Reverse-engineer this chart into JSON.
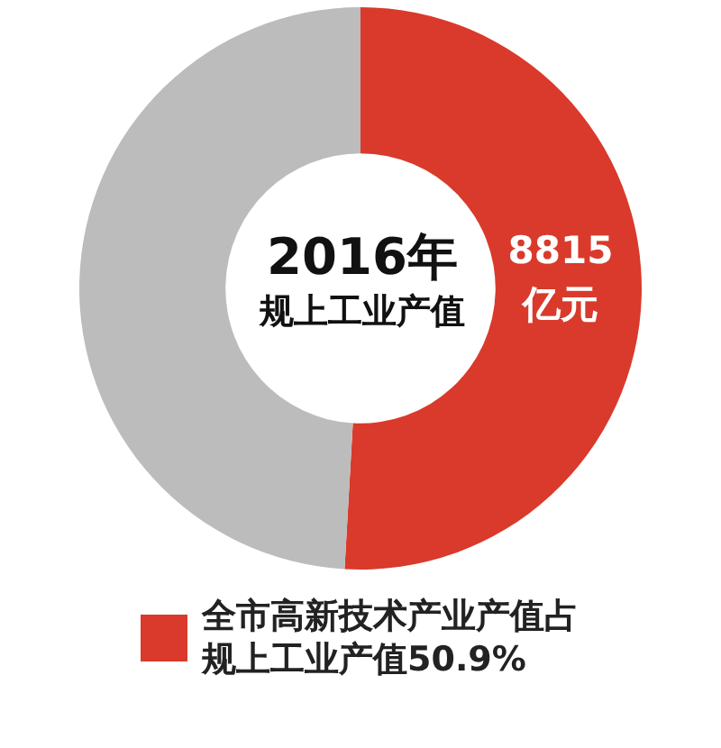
{
  "chart_data": {
    "type": "donut",
    "title": "2016年",
    "subtitle": "规上工业产值",
    "categories": [
      "全市高新技术产业产值占规上工业产值50.9%",
      null
    ],
    "values": [
      50.9,
      49.1
    ],
    "colors": [
      "#d93a2b",
      "#bcbcbc"
    ],
    "annotations": [
      "8815亿元"
    ],
    "legend": "bottom"
  }
}
